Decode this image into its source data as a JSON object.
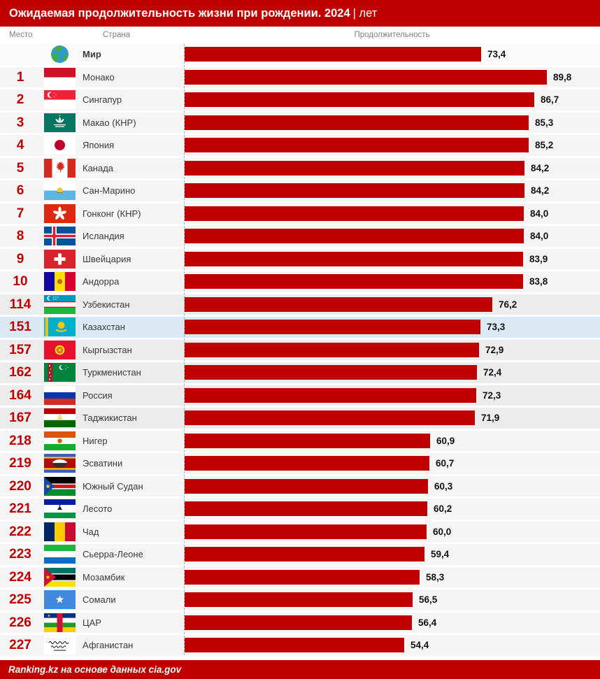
{
  "title": {
    "main": "Ожидаемая продолжительность жизни при рождении. 2024",
    "separator": "|",
    "unit": "лет"
  },
  "columns": {
    "rank": "Место",
    "country": "Страна",
    "value": "Продолжительность"
  },
  "footer": {
    "text": "Ranking.kz на основе данных cia.gov"
  },
  "colors": {
    "accent": "#c00000",
    "bar": "#c00000",
    "rank_text": "#c00000",
    "row_bg": "#f5f5f5",
    "cis_row_bg": "#ececec",
    "highlight_row_bg": "#dbe9f5",
    "column_header_text": "#7f7f7f"
  },
  "chart_data": {
    "type": "bar",
    "orientation": "horizontal",
    "title": "Ожидаемая продолжительность жизни при рождении. 2024 | лет",
    "unit": "лет",
    "xlim": [
      0,
      92
    ],
    "grid": false,
    "legend": false,
    "source": "Ranking.kz на основе данных cia.gov",
    "rows": [
      {
        "rank": "",
        "country": "Мир",
        "value": 73.4,
        "value_label": "73,4",
        "flag": "world",
        "group": "world",
        "bold": true
      },
      {
        "rank": "1",
        "country": "Монако",
        "value": 89.8,
        "value_label": "89,8",
        "flag": "monaco",
        "group": "top"
      },
      {
        "rank": "2",
        "country": "Сингапур",
        "value": 86.7,
        "value_label": "86,7",
        "flag": "singapore",
        "group": "top"
      },
      {
        "rank": "3",
        "country": "Макао (КНР)",
        "value": 85.3,
        "value_label": "85,3",
        "flag": "macau",
        "group": "top"
      },
      {
        "rank": "4",
        "country": "Япония",
        "value": 85.2,
        "value_label": "85,2",
        "flag": "japan",
        "group": "top"
      },
      {
        "rank": "5",
        "country": "Канада",
        "value": 84.2,
        "value_label": "84,2",
        "flag": "canada",
        "group": "top"
      },
      {
        "rank": "6",
        "country": "Сан-Марино",
        "value": 84.2,
        "value_label": "84,2",
        "flag": "san-marino",
        "group": "top"
      },
      {
        "rank": "7",
        "country": "Гонконг (КНР)",
        "value": 84.0,
        "value_label": "84,0",
        "flag": "hong-kong",
        "group": "top"
      },
      {
        "rank": "8",
        "country": "Исландия",
        "value": 84.0,
        "value_label": "84,0",
        "flag": "iceland",
        "group": "top"
      },
      {
        "rank": "9",
        "country": "Швейцария",
        "value": 83.9,
        "value_label": "83,9",
        "flag": "switzerland",
        "group": "top"
      },
      {
        "rank": "10",
        "country": "Андорра",
        "value": 83.8,
        "value_label": "83,8",
        "flag": "andorra",
        "group": "top"
      },
      {
        "rank": "114",
        "country": "Узбекистан",
        "value": 76.2,
        "value_label": "76,2",
        "flag": "uzbekistan",
        "group": "cis"
      },
      {
        "rank": "151",
        "country": "Казахстан",
        "value": 73.3,
        "value_label": "73,3",
        "flag": "kazakhstan",
        "group": "highlight"
      },
      {
        "rank": "157",
        "country": "Кыргызстан",
        "value": 72.9,
        "value_label": "72,9",
        "flag": "kyrgyzstan",
        "group": "cis"
      },
      {
        "rank": "162",
        "country": "Туркменистан",
        "value": 72.4,
        "value_label": "72,4",
        "flag": "turkmenistan",
        "group": "cis"
      },
      {
        "rank": "164",
        "country": "Россия",
        "value": 72.3,
        "value_label": "72,3",
        "flag": "russia",
        "group": "cis"
      },
      {
        "rank": "167",
        "country": "Таджикистан",
        "value": 71.9,
        "value_label": "71,9",
        "flag": "tajikistan",
        "group": "cis"
      },
      {
        "rank": "218",
        "country": "Нигер",
        "value": 60.9,
        "value_label": "60,9",
        "flag": "niger",
        "group": "bottom"
      },
      {
        "rank": "219",
        "country": "Эсватини",
        "value": 60.7,
        "value_label": "60,7",
        "flag": "eswatini",
        "group": "bottom"
      },
      {
        "rank": "220",
        "country": "Южный Судан",
        "value": 60.3,
        "value_label": "60,3",
        "flag": "south-sudan",
        "group": "bottom"
      },
      {
        "rank": "221",
        "country": "Лесото",
        "value": 60.2,
        "value_label": "60,2",
        "flag": "lesotho",
        "group": "bottom"
      },
      {
        "rank": "222",
        "country": "Чад",
        "value": 60.0,
        "value_label": "60,0",
        "flag": "chad",
        "group": "bottom"
      },
      {
        "rank": "223",
        "country": "Сьерра-Леоне",
        "value": 59.4,
        "value_label": "59,4",
        "flag": "sierra-leone",
        "group": "bottom"
      },
      {
        "rank": "224",
        "country": "Мозамбик",
        "value": 58.3,
        "value_label": "58,3",
        "flag": "mozambique",
        "group": "bottom"
      },
      {
        "rank": "225",
        "country": "Сомали",
        "value": 56.5,
        "value_label": "56,5",
        "flag": "somalia",
        "group": "bottom"
      },
      {
        "rank": "226",
        "country": "ЦАР",
        "value": 56.4,
        "value_label": "56,4",
        "flag": "car",
        "group": "bottom"
      },
      {
        "rank": "227",
        "country": "Афганистан",
        "value": 54.4,
        "value_label": "54,4",
        "flag": "afghanistan",
        "group": "bottom"
      }
    ]
  }
}
